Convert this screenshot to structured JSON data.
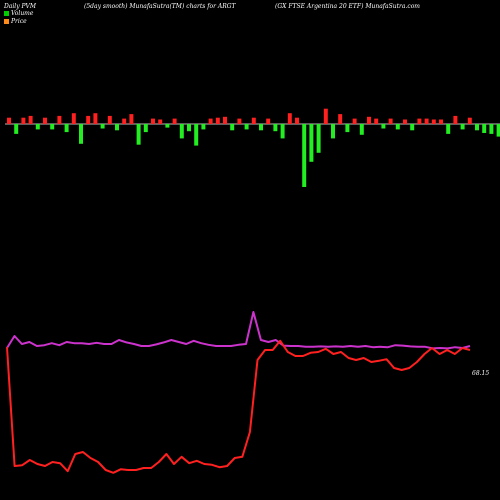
{
  "header": {
    "left": "Daily PVM",
    "center": "(5day smooth) MunafaSutra(TM) charts for ARGT",
    "right": "(GX FTSE Argentina 20 ETF) MunafaSutra.com"
  },
  "legend": [
    {
      "label": "Volume",
      "color": "#00cc00"
    },
    {
      "label": "Price",
      "color": "#ff8c1a"
    }
  ],
  "colors": {
    "background": "#000000",
    "volume_up": "#ff2020",
    "volume_down": "#22ee22",
    "pvm_line": "#cc33cc",
    "price_line": "#ff2020",
    "baseline": "#bbbbbb"
  },
  "end_label": "68.15",
  "chart_data": [
    {
      "type": "bar",
      "title": "Volume",
      "series": [
        {
          "values": [
            0.35,
            -0.55,
            0.35,
            0.45,
            -0.3,
            0.35,
            -0.3,
            0.45,
            -0.45,
            0.6,
            -1.1,
            0.45,
            0.6,
            -0.25,
            0.45,
            -0.35,
            0.3,
            0.55,
            -1.15,
            -0.45,
            0.3,
            0.25,
            -0.2,
            0.3,
            -0.8,
            -0.4,
            -1.2,
            -0.3,
            0.3,
            0.35,
            0.4,
            -0.35,
            0.3,
            -0.3,
            0.35,
            -0.35,
            0.3,
            -0.4,
            -0.8,
            0.6,
            0.35,
            -3.5,
            -2.1,
            -1.6,
            0.85,
            -0.8,
            0.55,
            -0.45,
            0.3,
            -0.6,
            0.4,
            0.3,
            -0.25,
            0.3,
            -0.3,
            0.25,
            -0.35,
            0.3,
            0.3,
            0.25,
            0.25,
            -0.55,
            0.45,
            -0.3,
            0.35,
            -0.35,
            -0.5,
            -0.55,
            -0.7,
            0.2,
            -0.5,
            0.25
          ]
        }
      ]
    },
    {
      "type": "line",
      "title": "PVM",
      "series": [
        {
          "values": [
            0.6,
            0.9,
            0.7,
            0.75,
            0.65,
            0.67,
            0.72,
            0.67,
            0.75,
            0.72,
            0.72,
            0.7,
            0.73,
            0.7,
            0.7,
            0.8,
            0.74,
            0.7,
            0.65,
            0.65,
            0.69,
            0.74,
            0.8,
            0.75,
            0.7,
            0.78,
            0.72,
            0.68,
            0.65,
            0.65,
            0.65,
            0.68,
            0.7,
            1.5,
            0.8,
            0.75,
            0.8,
            0.66,
            0.65,
            0.65,
            0.63,
            0.63,
            0.64,
            0.63,
            0.64,
            0.63,
            0.65,
            0.63,
            0.65,
            0.62,
            0.63,
            0.62,
            0.67,
            0.66,
            0.64,
            0.63,
            0.63,
            0.59,
            0.6,
            0.59,
            0.62,
            0.6,
            0.65
          ]
        },
        {
          "values": [
            0.62,
            -2.35,
            -2.33,
            -2.2,
            -2.3,
            -2.35,
            -2.25,
            -2.28,
            -2.48,
            -2.05,
            -2.0,
            -2.15,
            -2.25,
            -2.45,
            -2.52,
            -2.43,
            -2.45,
            -2.45,
            -2.4,
            -2.4,
            -2.25,
            -2.05,
            -2.3,
            -2.12,
            -2.28,
            -2.22,
            -2.3,
            -2.32,
            -2.38,
            -2.35,
            -2.15,
            -2.12,
            -1.5,
            0.3,
            0.55,
            0.55,
            0.78,
            0.5,
            0.4,
            0.4,
            0.48,
            0.5,
            0.58,
            0.45,
            0.5,
            0.35,
            0.3,
            0.35,
            0.25,
            0.28,
            0.32,
            0.1,
            0.05,
            0.1,
            0.25,
            0.45,
            0.6,
            0.45,
            0.55,
            0.45,
            0.6,
            0.55
          ]
        }
      ]
    }
  ]
}
